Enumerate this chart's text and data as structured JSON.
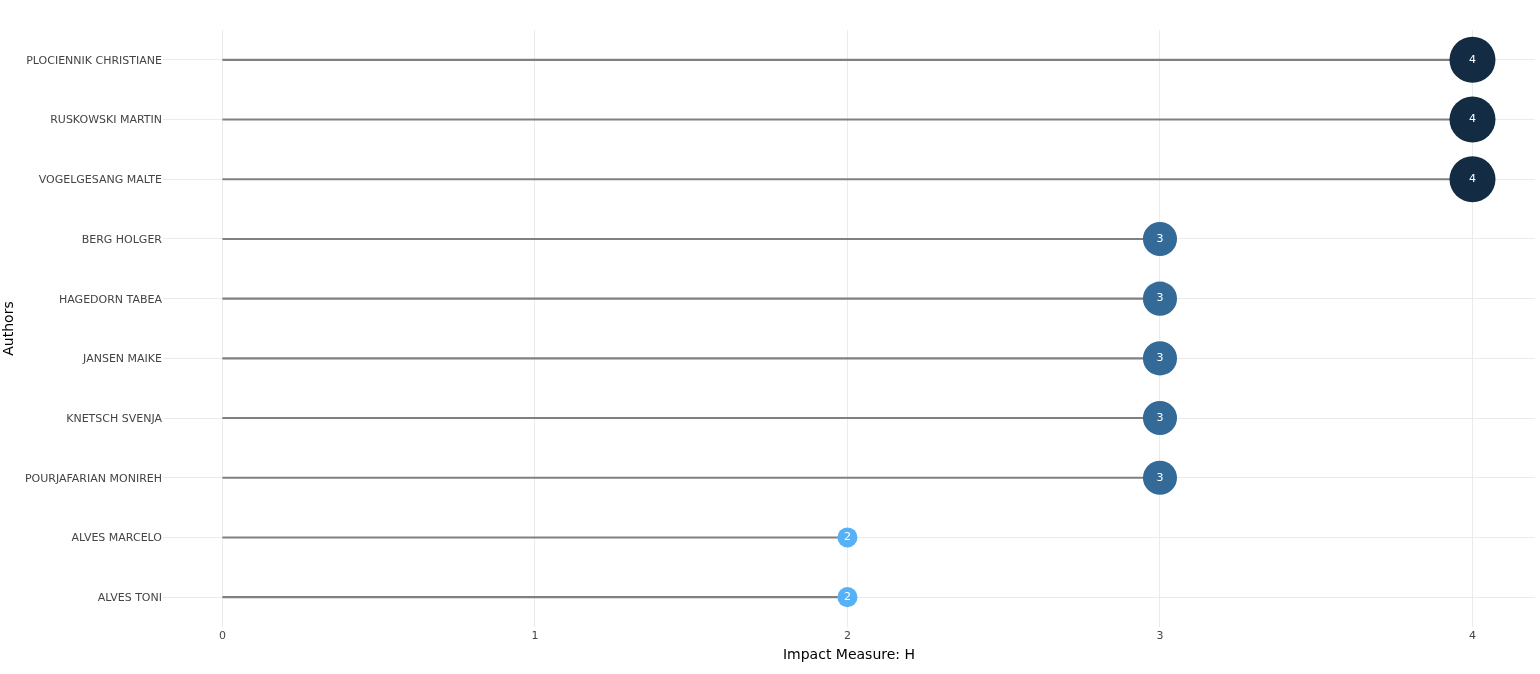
{
  "chart_data": {
    "type": "lollipop",
    "orientation": "horizontal",
    "xlabel": "Impact Measure: H",
    "ylabel": "Authors",
    "categories": [
      "PLOCIENNIK CHRISTIANE",
      "RUSKOWSKI MARTIN",
      "VOGELGESANG MALTE",
      "BERG HOLGER",
      "HAGEDORN TABEA",
      "JANSEN MAIKE",
      "KNETSCH SVENJA",
      "POURJAFARIAN MONIREH",
      "ALVES MARCELO",
      "ALVES TONI"
    ],
    "values": [
      4,
      4,
      4,
      3,
      3,
      3,
      3,
      3,
      2,
      2
    ],
    "colors": [
      "#132b43",
      "#132b43",
      "#132b43",
      "#336a98",
      "#336a98",
      "#336a98",
      "#336a98",
      "#336a98",
      "#56b1f7",
      "#56b1f7"
    ],
    "sizes": [
      1,
      1,
      1,
      0.55,
      0.55,
      0.55,
      0.55,
      0.55,
      0.19,
      0.19
    ],
    "xlim": [
      -0.19,
      4.2
    ],
    "xticks": [
      0,
      1,
      2,
      3,
      4
    ],
    "grid": true,
    "data_labels": true,
    "marker": "circle"
  }
}
